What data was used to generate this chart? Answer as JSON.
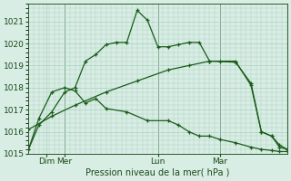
{
  "bg_color": "#d8ede4",
  "grid_color": "#aacfbf",
  "line_color": "#1a5c1a",
  "title": "Pression niveau de la mer( hPa )",
  "ylim": [
    1015,
    1021.8
  ],
  "figsize": [
    3.2,
    2.0
  ],
  "dpi": 100,
  "line1_x": [
    0.0,
    0.04,
    0.09,
    0.14,
    0.18,
    0.22,
    0.26,
    0.3,
    0.34,
    0.38,
    0.42,
    0.46,
    0.5,
    0.54,
    0.58,
    0.62,
    0.66,
    0.7,
    0.74,
    0.8,
    0.86,
    0.9,
    0.94,
    0.97,
    1.0
  ],
  "line1_y": [
    1015.2,
    1016.3,
    1016.9,
    1017.8,
    1018.0,
    1019.2,
    1019.5,
    1019.95,
    1020.05,
    1020.05,
    1021.5,
    1021.05,
    1019.85,
    1019.85,
    1019.95,
    1020.05,
    1020.05,
    1019.2,
    1019.2,
    1019.2,
    1018.1,
    1016.0,
    1015.8,
    1015.3,
    1015.2
  ],
  "line2_x": [
    0.0,
    0.04,
    0.09,
    0.14,
    0.18,
    0.22,
    0.26,
    0.3,
    0.38,
    0.46,
    0.54,
    0.58,
    0.62,
    0.66,
    0.7,
    0.74,
    0.8,
    0.86,
    0.9,
    0.94,
    0.97,
    1.0
  ],
  "line2_y": [
    1015.2,
    1016.6,
    1017.8,
    1018.0,
    1017.85,
    1017.3,
    1017.5,
    1017.05,
    1016.9,
    1016.5,
    1016.5,
    1016.3,
    1016.0,
    1015.8,
    1015.8,
    1015.65,
    1015.5,
    1015.3,
    1015.2,
    1015.15,
    1015.1,
    1015.1
  ],
  "line3_x": [
    0.0,
    0.09,
    0.18,
    0.3,
    0.42,
    0.54,
    0.62,
    0.7,
    0.8,
    0.86,
    0.9,
    0.94,
    0.97,
    1.0
  ],
  "line3_y": [
    1016.1,
    1016.7,
    1017.2,
    1017.8,
    1018.3,
    1018.8,
    1019.0,
    1019.2,
    1019.15,
    1018.2,
    1016.0,
    1015.8,
    1015.4,
    1015.2
  ],
  "vlines_x": [
    0.14,
    0.5,
    0.74
  ],
  "xtick_pos": [
    0.07,
    0.14,
    0.5,
    0.74
  ],
  "xtick_labels": [
    "Dim",
    "Mer",
    "Lun",
    "Mar"
  ]
}
